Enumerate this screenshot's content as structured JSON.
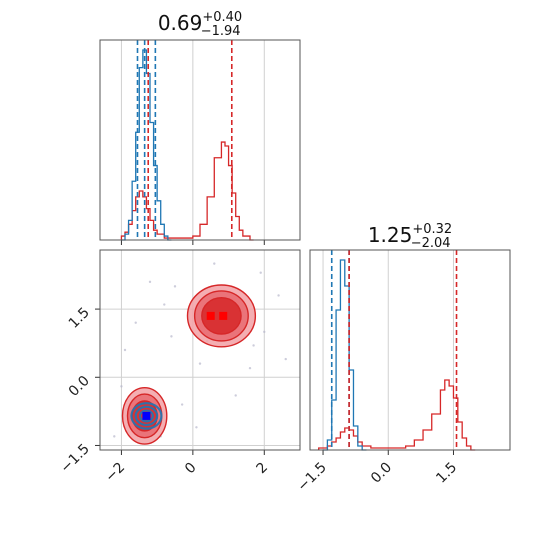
{
  "chart_data": [
    {
      "type": "histogram",
      "panel": "top-left",
      "title": {
        "value": "0.69",
        "upper": "+0.40",
        "lower": "−1.94"
      },
      "xlim": [
        -2.6,
        3.0
      ],
      "x_ticks": [
        -2,
        0,
        2
      ],
      "grid": true,
      "blue_series": {
        "color": "#1f77b4",
        "bins": [
          [
            -2.0,
            0.0
          ],
          [
            -1.9,
            0.03
          ],
          [
            -1.8,
            0.1
          ],
          [
            -1.7,
            0.3
          ],
          [
            -1.6,
            0.55
          ],
          [
            -1.5,
            0.88
          ],
          [
            -1.4,
            0.97
          ],
          [
            -1.3,
            0.85
          ],
          [
            -1.2,
            0.6
          ],
          [
            -1.1,
            0.38
          ],
          [
            -1.0,
            0.2
          ],
          [
            -0.9,
            0.08
          ],
          [
            -0.8,
            0.02
          ],
          [
            -0.7,
            0.0
          ]
        ],
        "quantile_lines": [
          -1.55,
          -1.35,
          -1.05
        ]
      },
      "red_series": {
        "color": "#d62728",
        "bins": [
          [
            -2.0,
            0.02
          ],
          [
            -1.9,
            0.04
          ],
          [
            -1.8,
            0.08
          ],
          [
            -1.7,
            0.15
          ],
          [
            -1.6,
            0.22
          ],
          [
            -1.5,
            0.25
          ],
          [
            -1.4,
            0.22
          ],
          [
            -1.3,
            0.16
          ],
          [
            -1.2,
            0.1
          ],
          [
            -1.1,
            0.05
          ],
          [
            -1.0,
            0.03
          ],
          [
            -0.8,
            0.01
          ],
          [
            -0.6,
            0.01
          ],
          [
            -0.2,
            0.01
          ],
          [
            0.0,
            0.02
          ],
          [
            0.2,
            0.08
          ],
          [
            0.4,
            0.22
          ],
          [
            0.6,
            0.42
          ],
          [
            0.8,
            0.5
          ],
          [
            0.9,
            0.48
          ],
          [
            1.0,
            0.38
          ],
          [
            1.1,
            0.24
          ],
          [
            1.2,
            0.12
          ],
          [
            1.3,
            0.05
          ],
          [
            1.4,
            0.02
          ],
          [
            1.6,
            0.0
          ]
        ],
        "quantile_lines": [
          -1.25,
          1.09
        ]
      }
    },
    {
      "type": "histogram",
      "panel": "bottom-right",
      "title": {
        "value": "1.25",
        "upper": "+0.32",
        "lower": "−2.04"
      },
      "xlim": [
        -1.8,
        2.8
      ],
      "x_ticks": [
        -1.5,
        0.0,
        1.5
      ],
      "x_tick_labels": [
        "−1.5",
        "0.0",
        "1.5"
      ],
      "grid": true,
      "blue_series": {
        "color": "#1f77b4",
        "bins": [
          [
            -1.5,
            0.0
          ],
          [
            -1.4,
            0.05
          ],
          [
            -1.3,
            0.25
          ],
          [
            -1.2,
            0.7
          ],
          [
            -1.1,
            0.95
          ],
          [
            -1.0,
            0.82
          ],
          [
            -0.9,
            0.4
          ],
          [
            -0.8,
            0.12
          ],
          [
            -0.7,
            0.02
          ],
          [
            -0.6,
            0.0
          ]
        ],
        "quantile_lines": [
          -1.3,
          -0.9
        ]
      },
      "red_series": {
        "color": "#d62728",
        "bins": [
          [
            -1.6,
            0.01
          ],
          [
            -1.4,
            0.02
          ],
          [
            -1.3,
            0.04
          ],
          [
            -1.2,
            0.06
          ],
          [
            -1.1,
            0.09
          ],
          [
            -1.0,
            0.11
          ],
          [
            -0.9,
            0.1
          ],
          [
            -0.8,
            0.07
          ],
          [
            -0.7,
            0.04
          ],
          [
            -0.6,
            0.02
          ],
          [
            -0.4,
            0.01
          ],
          [
            0.2,
            0.01
          ],
          [
            0.4,
            0.02
          ],
          [
            0.6,
            0.05
          ],
          [
            0.8,
            0.1
          ],
          [
            1.0,
            0.18
          ],
          [
            1.2,
            0.3
          ],
          [
            1.3,
            0.35
          ],
          [
            1.4,
            0.32
          ],
          [
            1.5,
            0.26
          ],
          [
            1.6,
            0.14
          ],
          [
            1.7,
            0.06
          ],
          [
            1.8,
            0.02
          ],
          [
            1.9,
            0.0
          ]
        ],
        "quantile_lines": [
          -0.9,
          1.57
        ]
      }
    },
    {
      "type": "scatter",
      "panel": "bottom-left",
      "xlim": [
        -2.6,
        3.0
      ],
      "ylim": [
        -1.6,
        2.8
      ],
      "x_ticks": [
        -2,
        0,
        2
      ],
      "y_ticks": [
        -1.5,
        0.0,
        1.5
      ],
      "y_tick_labels": [
        "−1.5",
        "0.0",
        "1.5"
      ],
      "grid": true,
      "red_contours": {
        "color": "#d62728",
        "clusters": [
          {
            "cx": 0.8,
            "cy": 1.35,
            "rx": [
              0.95,
              0.75,
              0.55
            ],
            "ry": [
              0.68,
              0.55,
              0.4
            ]
          },
          {
            "cx": -1.35,
            "cy": -0.85,
            "rx": [
              0.62,
              0.48,
              0.35
            ],
            "ry": [
              0.62,
              0.48,
              0.33
            ]
          }
        ]
      },
      "blue_contours": {
        "color": "#1f77b4",
        "cx": -1.3,
        "cy": -0.85,
        "rx": [
          0.42,
          0.3,
          0.18
        ],
        "ry": [
          0.28,
          0.2,
          0.12
        ]
      },
      "markers": [
        {
          "x": 0.5,
          "y": 1.35,
          "color": "#ff0000"
        },
        {
          "x": 0.85,
          "y": 1.35,
          "color": "#ff0000"
        },
        {
          "x": -1.3,
          "y": -0.85,
          "color": "#0000ff"
        }
      ],
      "background_points": [
        [
          -0.8,
          1.6
        ],
        [
          -0.5,
          2.0
        ],
        [
          0.2,
          0.3
        ],
        [
          1.6,
          0.2
        ],
        [
          2.0,
          1.0
        ],
        [
          -1.9,
          0.6
        ],
        [
          -0.3,
          -0.6
        ],
        [
          1.9,
          2.3
        ],
        [
          -2.0,
          -0.2
        ],
        [
          0.1,
          -1.1
        ],
        [
          1.2,
          -0.4
        ],
        [
          -0.6,
          0.9
        ],
        [
          2.4,
          1.8
        ],
        [
          -1.2,
          2.1
        ],
        [
          0.6,
          2.5
        ],
        [
          -2.2,
          -1.3
        ],
        [
          1.7,
          0.7
        ],
        [
          -0.9,
          -1.3
        ],
        [
          2.6,
          0.4
        ],
        [
          -1.6,
          1.2
        ],
        [
          0.4,
          0.8
        ]
      ]
    }
  ]
}
